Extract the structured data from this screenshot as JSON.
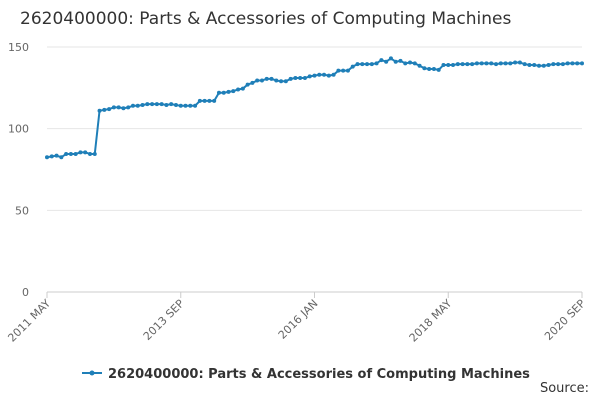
{
  "chart_data": {
    "type": "line",
    "title": "2620400000: Parts & Accessories of Computing Machines",
    "source": "Source:",
    "categories": [
      "2011 MAY",
      null,
      null,
      null,
      null,
      null,
      null,
      null,
      null,
      null,
      null,
      null,
      null,
      null,
      null,
      null,
      null,
      null,
      null,
      null,
      null,
      null,
      null,
      null,
      null,
      null,
      null,
      null,
      "2013 SEP",
      null,
      null,
      null,
      null,
      null,
      null,
      null,
      null,
      null,
      null,
      null,
      null,
      null,
      null,
      null,
      null,
      null,
      null,
      null,
      null,
      null,
      null,
      null,
      null,
      null,
      null,
      null,
      "2016 JAN",
      null,
      null,
      null,
      null,
      null,
      null,
      null,
      null,
      null,
      null,
      null,
      null,
      null,
      null,
      null,
      null,
      null,
      null,
      null,
      null,
      null,
      null,
      null,
      null,
      null,
      null,
      null,
      "2018 MAY",
      null,
      null,
      null,
      null,
      null,
      null,
      null,
      null,
      null,
      null,
      null,
      null,
      null,
      null,
      null,
      null,
      null,
      null,
      null,
      null,
      null,
      null,
      null,
      null,
      null,
      null,
      null,
      "2020 SEP"
    ],
    "series": [
      {
        "name": "2620400000: Parts & Accessories of Computing Machines",
        "color": "#1f7fb8",
        "values": [
          82.5,
          83,
          83.5,
          82.5,
          84.5,
          84.5,
          84.5,
          85.5,
          85.5,
          84.5,
          84.5,
          111,
          111.5,
          112,
          113,
          113,
          112.5,
          113,
          114,
          114,
          114.5,
          115,
          115,
          115,
          115,
          114.5,
          115,
          114.5,
          114,
          114,
          114,
          114,
          117,
          117,
          117,
          117,
          122,
          122,
          122.5,
          123,
          124,
          124.5,
          127,
          128,
          129.5,
          129.5,
          130.5,
          130.5,
          129.5,
          129,
          129,
          130.5,
          131,
          131,
          131,
          132,
          132.5,
          133,
          133,
          132.5,
          133,
          135.5,
          135.5,
          135.5,
          138,
          139.5,
          139.5,
          139.5,
          139.5,
          140,
          142,
          141,
          143,
          141,
          141.5,
          140,
          140.5,
          140,
          138.5,
          137,
          136.5,
          136.5,
          136,
          139,
          139,
          139,
          139.5,
          139.5,
          139.5,
          139.5,
          140,
          140,
          140,
          140,
          139.5,
          140,
          140,
          140,
          140.5,
          140.5,
          139.5,
          139,
          139,
          138.5,
          138.5,
          139,
          139.5,
          139.5,
          139.5,
          140,
          140,
          140,
          140
        ]
      }
    ],
    "ylim": [
      0,
      150
    ],
    "yticks": [
      0,
      50,
      100,
      150
    ],
    "grid": true
  }
}
